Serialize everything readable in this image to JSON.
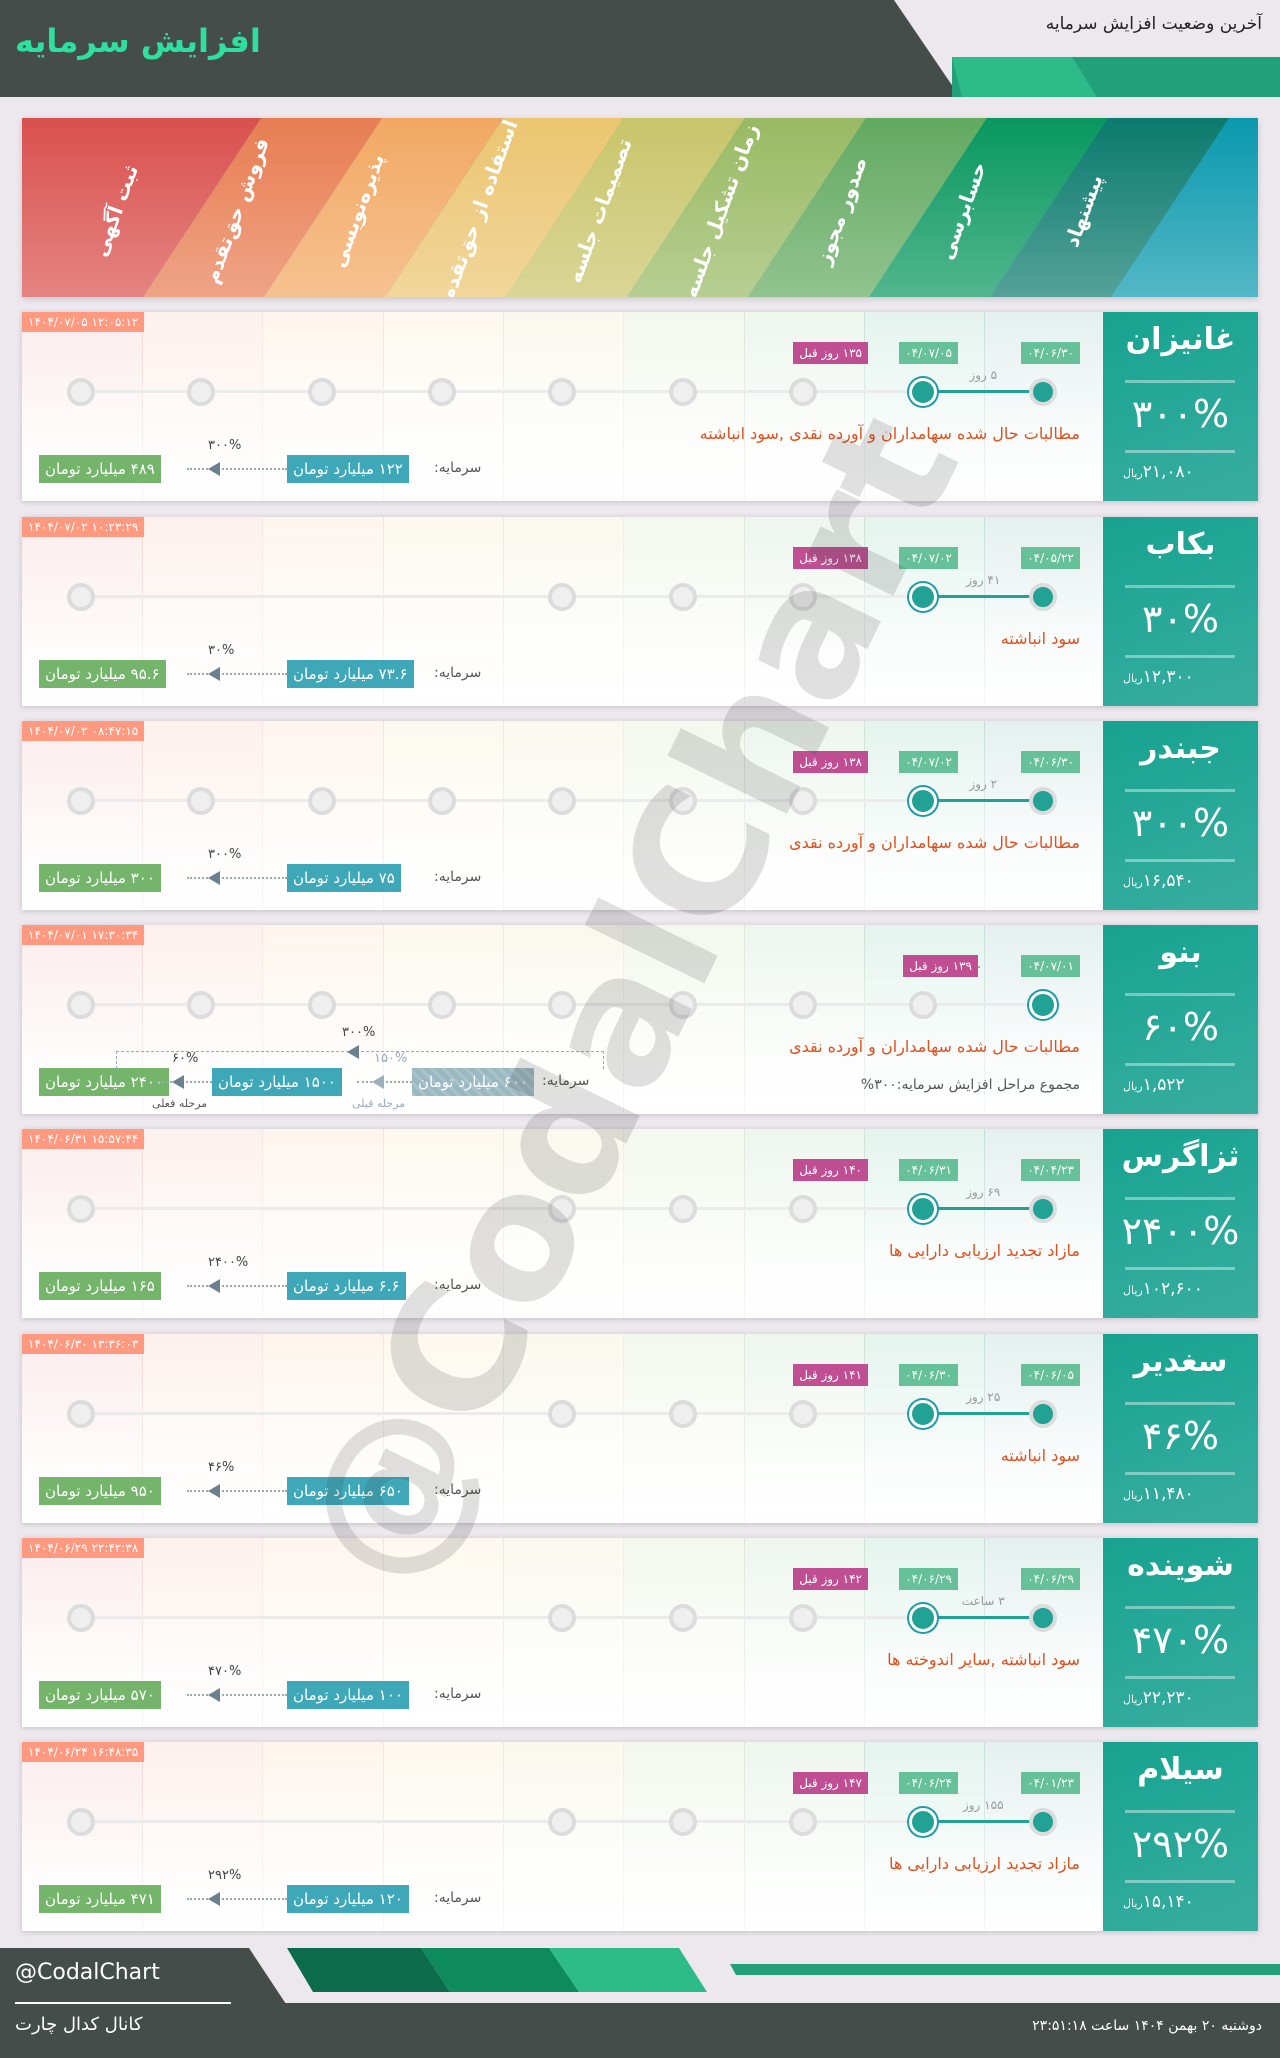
{
  "header": {
    "title": "افزایش سرمایه",
    "subtitle": "آخرین وضعیت افزایش سرمایه"
  },
  "stages": [
    {
      "label": "ثبت آگهی",
      "color": "#d9504d"
    },
    {
      "label": "فروش حق‌تقدم",
      "color": "#e87d52"
    },
    {
      "label": "پذیره‌نویسی",
      "color": "#f2a862"
    },
    {
      "label": "استفاده از حق‌تقدم",
      "color": "#ebc570"
    },
    {
      "label": "تصمیمات جلسه",
      "color": "#c9c56a"
    },
    {
      "label": "زمان تشکیل جلسه",
      "color": "#98ba63"
    },
    {
      "label": "صدور مجوز",
      "color": "#62aa60"
    },
    {
      "label": "حسابرسی",
      "color": "#08975f"
    },
    {
      "label": "پیشنهاد",
      "color": "#0b7a6e"
    }
  ],
  "colors": {
    "accent": "#22a294",
    "description": "#e0501f",
    "timestamp": "#ff9980",
    "badge_date": "#66c09a",
    "badge_ago": "#bf4f92",
    "capital_before": "#3ea8b8",
    "capital_after": "#74b56b"
  },
  "capital_label": "سرمایه:",
  "currency": "ریال",
  "rows": [
    {
      "name": "غانیزان",
      "percent": "۳۰۰%",
      "price": "۲۱,۰۸۰",
      "timestamp": "۱۴۰۴/۰۷/۰۵ ۱۲:۰۵:۱۲",
      "date_start": "۰۴/۰۶/۳۰",
      "date_end": "۰۴/۰۷/۰۵",
      "ago": "۱۳۵ روز قبل",
      "gap": "۵ روز",
      "description": "مطالبات حال شده سهامداران و آورده نقدی ,سود انباشته",
      "capital_before": "۱۲۲ میلیارد تومان",
      "capital_after": "۴۸۹ میلیارد تومان",
      "capital_percent": "۳۰۰%",
      "hidden_stages": []
    },
    {
      "name": "بکاب",
      "percent": "۳۰%",
      "price": "۱۲,۳۰۰",
      "timestamp": "۱۴۰۴/۰۷/۰۲ ۱۰:۲۳:۲۹",
      "date_start": "۰۴/۰۵/۲۲",
      "date_end": "۰۴/۰۷/۰۲",
      "ago": "۱۳۸ روز قبل",
      "gap": "۴۱ روز",
      "description": "سود انباشته",
      "capital_before": "۷۳.۶ میلیارد تومان",
      "capital_after": "۹۵.۶ میلیارد تومان",
      "capital_percent": "۳۰%",
      "hidden_stages": [
        1,
        2,
        3
      ]
    },
    {
      "name": "جبندر",
      "percent": "۳۰۰%",
      "price": "۱۶,۵۴۰",
      "timestamp": "۱۴۰۴/۰۷/۰۲ ۰۸:۴۷:۱۵",
      "date_start": "۰۴/۰۶/۳۰",
      "date_end": "۰۴/۰۷/۰۲",
      "ago": "۱۳۸ روز قبل",
      "gap": "۲ روز",
      "description": "مطالبات حال شده سهامداران و آورده نقدی",
      "capital_before": "۷۵ میلیارد تومان",
      "capital_after": "۳۰۰ میلیارد تومان",
      "capital_percent": "۳۰۰%",
      "hidden_stages": []
    },
    {
      "name": "بنو",
      "percent": "۶۰%",
      "price": "۱,۵۲۲",
      "timestamp": "۱۴۰۴/۰۷/۰۱ ۱۷:۳۰:۳۴",
      "date_start": "۰۴/۰۷/۰۱",
      "ago": "۱۳۹ روز قبل",
      "description": "مطالبات حال شده سهامداران و آورده نقدی",
      "total": "مجموع مراحل افزایش سرمایه:۳۰۰%",
      "capital_initial": "۶۰۰ میلیارد تومان",
      "previous_percent": "۱۵۰%",
      "previous_label": "مرحله قبلی",
      "capital_before": "۱۵۰۰ میلیارد تومان",
      "capital_percent": "۶۰%",
      "current_label": "مرحله فعلی",
      "capital_after": "۲۴۰۰ میلیارد تومان",
      "overall_percent": "۳۰۰%",
      "hidden_stages": []
    },
    {
      "name": "ثزاگرس",
      "percent": "۲۴۰۰%",
      "price": "۱۰۲,۶۰۰",
      "timestamp": "۱۴۰۴/۰۶/۳۱ ۱۵:۵۷:۴۴",
      "date_start": "۰۴/۰۴/۲۳",
      "date_end": "۰۴/۰۶/۳۱",
      "ago": "۱۴۰ روز قبل",
      "gap": "۶۹ روز",
      "description": "مازاد تجدید ارزیابی دارایی ها",
      "capital_before": "۶.۶ میلیارد تومان",
      "capital_after": "۱۶۵ میلیارد تومان",
      "capital_percent": "۲۴۰۰%",
      "hidden_stages": [
        1,
        2,
        3
      ]
    },
    {
      "name": "سغدیر",
      "percent": "۴۶%",
      "price": "۱۱,۴۸۰",
      "timestamp": "۱۴۰۴/۰۶/۳۰ ۱۳:۳۶:۰۳",
      "date_start": "۰۴/۰۶/۰۵",
      "date_end": "۰۴/۰۶/۳۰",
      "ago": "۱۴۱ روز قبل",
      "gap": "۲۵ روز",
      "description": "سود انباشته",
      "capital_before": "۶۵۰ میلیارد تومان",
      "capital_after": "۹۵۰ میلیارد تومان",
      "capital_percent": "۴۶%",
      "hidden_stages": [
        1,
        2,
        3
      ]
    },
    {
      "name": "شوینده",
      "percent": "۴۷۰%",
      "price": "۲۲,۲۳۰",
      "timestamp": "۱۴۰۴/۰۶/۲۹ ۲۲:۴۲:۳۸",
      "date_start": "۰۴/۰۶/۲۹",
      "date_end": "۰۴/۰۶/۲۹",
      "ago": "۱۴۲ روز قبل",
      "gap": "۳ ساعت",
      "description": "سود انباشته ,سایر اندوخته ها",
      "capital_before": "۱۰۰ میلیارد تومان",
      "capital_after": "۵۷۰ میلیارد تومان",
      "capital_percent": "۴۷۰%",
      "hidden_stages": [
        1,
        2,
        3
      ]
    },
    {
      "name": "سیلام",
      "percent": "۲۹۲%",
      "price": "۱۵,۱۴۰",
      "timestamp": "۱۴۰۴/۰۶/۲۴ ۱۶:۴۸:۳۵",
      "date_start": "۰۴/۰۱/۲۳",
      "date_end": "۰۴/۰۶/۲۴",
      "ago": "۱۴۷ روز قبل",
      "gap": "۱۵۵ روز",
      "description": "مازاد تجدید ارزیابی دارایی ها",
      "capital_before": "۱۲۰ میلیارد تومان",
      "capital_after": "۴۷۱ میلیارد تومان",
      "capital_percent": "۲۹۲%",
      "hidden_stages": [
        1,
        2,
        3
      ]
    }
  ],
  "watermark": "@CodalChart",
  "footer": {
    "handle": "@CodalChart",
    "channel": "کانال کدال چارت",
    "datetime": "دوشنبه ۲۰ بهمن ۱۴۰۴ ساعت ۲۳:۵۱:۱۸"
  }
}
